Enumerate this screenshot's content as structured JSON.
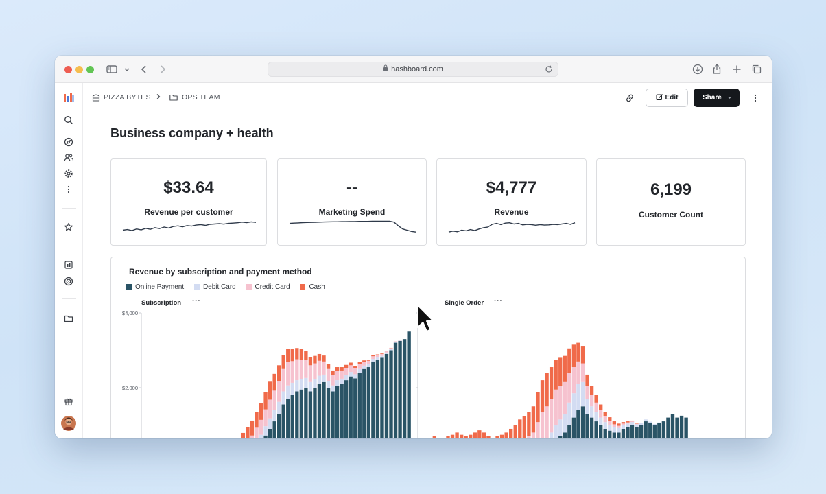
{
  "browser": {
    "url": "hashboard.com",
    "traffic_lights": [
      "#ee5d52",
      "#f5bd4f",
      "#62c554"
    ]
  },
  "breadcrumb": {
    "org": "PIZZA BYTES",
    "folder": "OPS TEAM"
  },
  "toolbar": {
    "edit_label": "Edit",
    "share_label": "Share"
  },
  "page": {
    "title": "Business company + health"
  },
  "kpis": [
    {
      "value": "$33.64",
      "label": "Revenue per customer",
      "trend": [
        0.25,
        0.3,
        0.22,
        0.35,
        0.28,
        0.4,
        0.32,
        0.45,
        0.38,
        0.5,
        0.42,
        0.55,
        0.6,
        0.52,
        0.62,
        0.58,
        0.66,
        0.7,
        0.64,
        0.72,
        0.75,
        0.78,
        0.74,
        0.8,
        0.82,
        0.85,
        0.9,
        0.86,
        0.92,
        0.88
      ]
    },
    {
      "value": "--",
      "label": "Marketing Spend",
      "trend": [
        0.8,
        0.82,
        0.84,
        0.86,
        0.87,
        0.88,
        0.89,
        0.9,
        0.91,
        0.92,
        0.93,
        0.93,
        0.94,
        0.94,
        0.95,
        0.95,
        0.96,
        0.96,
        0.96,
        0.97,
        0.97,
        0.97,
        0.97,
        0.98,
        0.9,
        0.6,
        0.35,
        0.25,
        0.15,
        0.1
      ]
    },
    {
      "value": "$4,777",
      "label": "Revenue",
      "trend": [
        0.1,
        0.18,
        0.12,
        0.25,
        0.2,
        0.3,
        0.22,
        0.35,
        0.45,
        0.5,
        0.72,
        0.8,
        0.7,
        0.82,
        0.85,
        0.75,
        0.8,
        0.68,
        0.72,
        0.7,
        0.65,
        0.7,
        0.66,
        0.68,
        0.72,
        0.7,
        0.75,
        0.8,
        0.72,
        0.85
      ]
    },
    {
      "value": "6,199",
      "label": "Customer Count"
    }
  ],
  "chart": {
    "title": "Revenue by subscription and payment method",
    "legend": [
      {
        "name": "Online Payment",
        "color": "#2a5466"
      },
      {
        "name": "Debit Card",
        "color": "#d3dcf2"
      },
      {
        "name": "Credit Card",
        "color": "#f6c2cf"
      },
      {
        "name": "Cash",
        "color": "#f06a4a"
      }
    ],
    "panels": [
      {
        "title": "Subscription",
        "dots": "···",
        "yticks": [
          "$4,000",
          "$2,000"
        ]
      },
      {
        "title": "Single Order",
        "dots": "···",
        "yticks": [
          "$4,000",
          "$2,000"
        ]
      }
    ]
  },
  "chart_data": [
    {
      "type": "bar",
      "title": "Subscription",
      "stacked": true,
      "ylim": [
        0,
        4000
      ],
      "series": [
        {
          "name": "Online Payment",
          "values": [
            0,
            0,
            0,
            0,
            0,
            0,
            0,
            0,
            0,
            0,
            0,
            0,
            0,
            0,
            0,
            0,
            0,
            0,
            0,
            0,
            40,
            80,
            120,
            180,
            250,
            380,
            520,
            720,
            900,
            1100,
            1300,
            1550,
            1700,
            1800,
            1900,
            1950,
            2000,
            1900,
            2000,
            2100,
            2150,
            2000,
            1900,
            2050,
            2100,
            2200,
            2300,
            2250,
            2400,
            2500,
            2550,
            2700,
            2750,
            2800,
            2900,
            3000,
            3200,
            3250,
            3300,
            3500
          ]
        },
        {
          "name": "Debit Card",
          "values": [
            0,
            0,
            0,
            0,
            0,
            0,
            0,
            0,
            0,
            0,
            0,
            0,
            0,
            0,
            0,
            0,
            0,
            0,
            0,
            0,
            80,
            100,
            120,
            150,
            170,
            200,
            220,
            250,
            280,
            300,
            320,
            350,
            360,
            330,
            300,
            280,
            260,
            250,
            230,
            220,
            200,
            180,
            160,
            150,
            140,
            130,
            120,
            110,
            100,
            90,
            80,
            70,
            60,
            50,
            40,
            30,
            20,
            10,
            0,
            0
          ]
        },
        {
          "name": "Credit Card",
          "values": [
            0,
            0,
            0,
            0,
            0,
            0,
            0,
            0,
            0,
            0,
            0,
            0,
            0,
            0,
            0,
            0,
            0,
            0,
            0,
            0,
            100,
            150,
            200,
            240,
            300,
            350,
            400,
            450,
            500,
            520,
            560,
            600,
            620,
            580,
            560,
            520,
            480,
            450,
            420,
            400,
            350,
            320,
            280,
            250,
            220,
            200,
            180,
            160,
            130,
            100,
            90,
            70,
            60,
            50,
            40,
            30,
            20,
            10,
            0,
            0
          ]
        },
        {
          "name": "Cash",
          "values": [
            0,
            0,
            0,
            0,
            0,
            0,
            0,
            0,
            0,
            0,
            0,
            0,
            0,
            0,
            0,
            0,
            0,
            0,
            0,
            0,
            250,
            300,
            350,
            380,
            400,
            420,
            450,
            470,
            480,
            450,
            420,
            380,
            350,
            320,
            300,
            280,
            250,
            220,
            200,
            180,
            160,
            140,
            120,
            100,
            90,
            80,
            70,
            60,
            50,
            40,
            30,
            25,
            20,
            15,
            10,
            5,
            0,
            0,
            0,
            0
          ]
        }
      ]
    },
    {
      "type": "bar",
      "title": "Single Order",
      "stacked": true,
      "ylim": [
        0,
        4000
      ],
      "series": [
        {
          "name": "Online Payment",
          "values": [
            0,
            0,
            0,
            0,
            0,
            0,
            0,
            0,
            0,
            0,
            0,
            0,
            0,
            0,
            0,
            0,
            0,
            0,
            0,
            0,
            0,
            0,
            50,
            100,
            150,
            200,
            280,
            350,
            400,
            500,
            600,
            700,
            800,
            1000,
            1200,
            1400,
            1500,
            1300,
            1200,
            1100,
            1000,
            900,
            850,
            800,
            800,
            900,
            950,
            1000,
            950,
            1000,
            1100,
            1050,
            1000,
            1050,
            1100,
            1200,
            1300,
            1200,
            1250,
            1200
          ]
        },
        {
          "name": "Debit Card",
          "values": [
            0,
            0,
            0,
            0,
            0,
            0,
            0,
            0,
            0,
            0,
            0,
            0,
            0,
            0,
            0,
            0,
            0,
            0,
            0,
            0,
            0,
            0,
            0,
            0,
            0,
            0,
            100,
            200,
            250,
            300,
            400,
            450,
            500,
            600,
            650,
            700,
            650,
            400,
            300,
            250,
            200,
            180,
            160,
            140,
            120,
            100,
            90,
            80,
            70,
            60,
            50,
            40,
            30,
            20,
            10,
            0,
            0,
            0,
            0,
            0
          ]
        },
        {
          "name": "Credit Card",
          "values": [
            150,
            200,
            250,
            300,
            250,
            280,
            300,
            320,
            350,
            320,
            300,
            320,
            350,
            380,
            350,
            300,
            280,
            300,
            320,
            350,
            400,
            450,
            500,
            520,
            550,
            600,
            700,
            800,
            850,
            900,
            950,
            900,
            850,
            800,
            700,
            600,
            500,
            350,
            300,
            250,
            200,
            150,
            100,
            80,
            60,
            40,
            30,
            20,
            10,
            0,
            0,
            0,
            0,
            0,
            0,
            0,
            0,
            0,
            0,
            0
          ]
        },
        {
          "name": "Cash",
          "values": [
            200,
            300,
            350,
            400,
            350,
            380,
            400,
            420,
            450,
            420,
            400,
            420,
            450,
            480,
            450,
            400,
            380,
            400,
            420,
            450,
            500,
            550,
            600,
            620,
            650,
            700,
            800,
            850,
            900,
            850,
            800,
            750,
            700,
            650,
            600,
            500,
            450,
            300,
            250,
            200,
            150,
            120,
            100,
            80,
            60,
            40,
            30,
            20,
            10,
            0,
            0,
            0,
            0,
            0,
            0,
            0,
            0,
            0,
            0,
            0
          ]
        }
      ]
    }
  ]
}
